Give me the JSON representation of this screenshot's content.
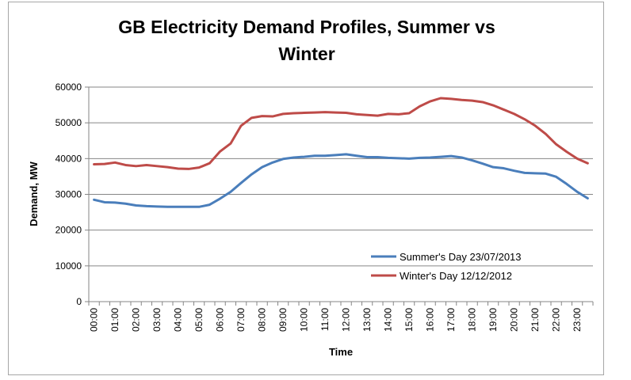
{
  "chart_data": {
    "type": "line",
    "title_lines": [
      "GB Electricity Demand Profiles, Summer vs",
      "Winter"
    ],
    "xlabel": "Time",
    "ylabel": "Demand, MW",
    "ylim": [
      0,
      60000
    ],
    "yticks": [
      0,
      10000,
      20000,
      30000,
      40000,
      50000,
      60000
    ],
    "grid": true,
    "legend_position": "bottom-right",
    "x": [
      "00:00",
      "00:30",
      "01:00",
      "01:30",
      "02:00",
      "02:30",
      "03:00",
      "03:30",
      "04:00",
      "04:30",
      "05:00",
      "05:30",
      "06:00",
      "06:30",
      "07:00",
      "07:30",
      "08:00",
      "08:30",
      "09:00",
      "09:30",
      "10:00",
      "10:30",
      "11:00",
      "11:30",
      "12:00",
      "12:30",
      "13:00",
      "13:30",
      "14:00",
      "14:30",
      "15:00",
      "15:30",
      "16:00",
      "16:30",
      "17:00",
      "17:30",
      "18:00",
      "18:30",
      "19:00",
      "19:30",
      "20:00",
      "20:30",
      "21:00",
      "21:30",
      "22:00",
      "22:30",
      "23:00",
      "23:30"
    ],
    "xtick_labels": [
      "00:00",
      "01:00",
      "02:00",
      "03:00",
      "04:00",
      "05:00",
      "06:00",
      "07:00",
      "08:00",
      "09:00",
      "10:00",
      "11:00",
      "12:00",
      "13:00",
      "14:00",
      "15:00",
      "16:00",
      "17:00",
      "18:00",
      "19:00",
      "20:00",
      "21:00",
      "22:00",
      "23:00"
    ],
    "series": [
      {
        "name": "Summer's Day 23/07/2013",
        "color": "#4a7ebb",
        "values": [
          28500,
          27800,
          27700,
          27400,
          26900,
          26700,
          26600,
          26500,
          26500,
          26500,
          26500,
          27100,
          28800,
          30700,
          33200,
          35600,
          37600,
          38900,
          39900,
          40300,
          40500,
          40800,
          40800,
          41000,
          41200,
          40800,
          40400,
          40400,
          40200,
          40100,
          40000,
          40200,
          40300,
          40500,
          40700,
          40300,
          39500,
          38600,
          37600,
          37300,
          36600,
          36000,
          35900,
          35800,
          34900,
          32900,
          30700,
          28900
        ]
      },
      {
        "name": "Winter's Day 12/12/2012",
        "color": "#be4b48",
        "values": [
          38400,
          38500,
          38900,
          38200,
          37900,
          38200,
          37900,
          37600,
          37200,
          37100,
          37500,
          38700,
          42000,
          44200,
          49200,
          51400,
          51900,
          51800,
          52500,
          52700,
          52800,
          52900,
          53000,
          52900,
          52800,
          52400,
          52200,
          52000,
          52500,
          52400,
          52700,
          54600,
          56000,
          56900,
          56700,
          56400,
          56200,
          55800,
          54900,
          53700,
          52500,
          51000,
          49200,
          46900,
          44000,
          41900,
          40000,
          38700
        ]
      }
    ]
  }
}
